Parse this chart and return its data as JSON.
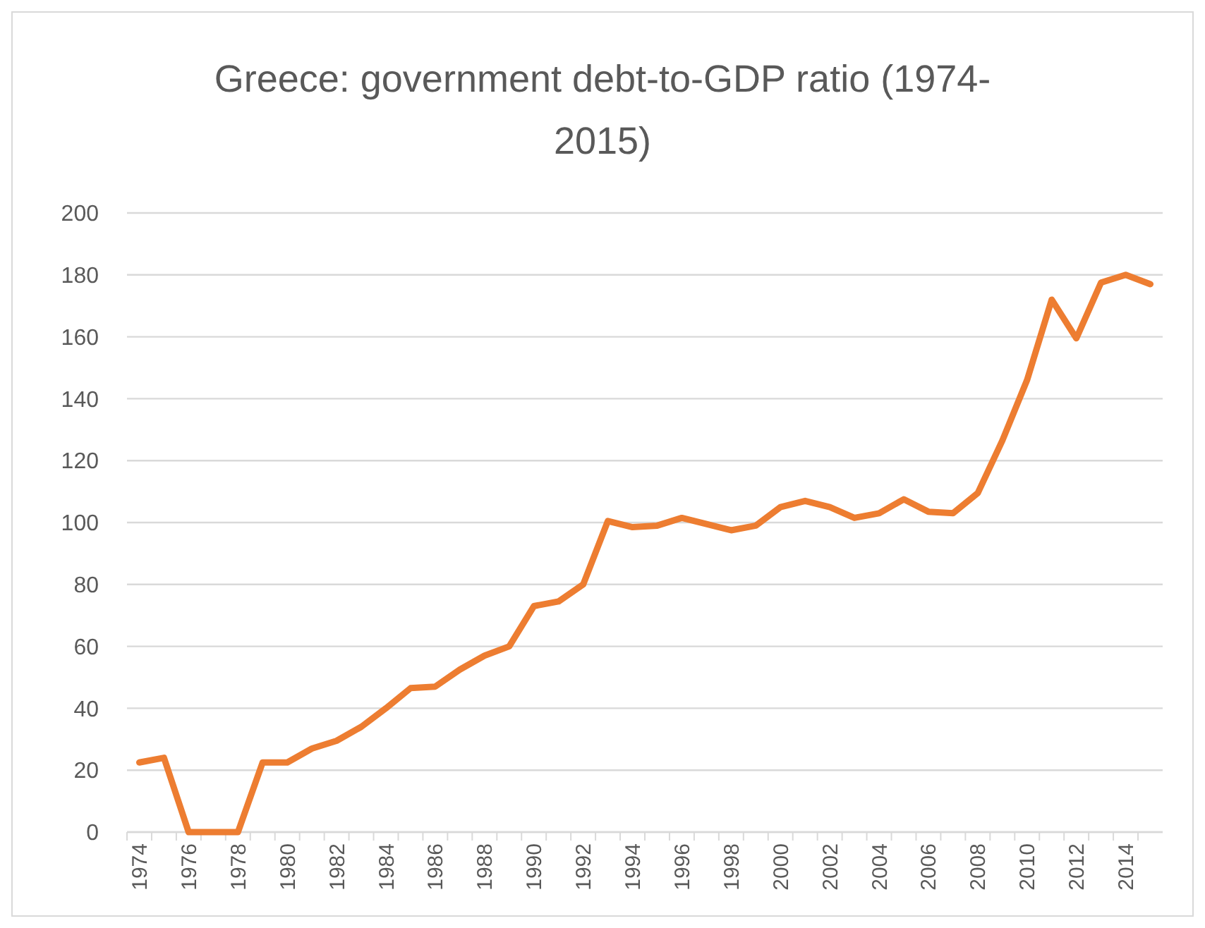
{
  "chart_data": {
    "type": "line",
    "title": "Greece: government debt-to-GDP ratio (1974-2015)",
    "categories": [
      "1974",
      null,
      "1976",
      null,
      "1978",
      null,
      "1980",
      null,
      "1982",
      null,
      "1984",
      null,
      "1986",
      null,
      "1988",
      null,
      "1990",
      null,
      "1992",
      null,
      "1994",
      null,
      "1996",
      null,
      "1998",
      null,
      "2000",
      null,
      "2002",
      null,
      "2004",
      null,
      "2006",
      null,
      "2008",
      null,
      "2010",
      null,
      "2012",
      null,
      "2014",
      null
    ],
    "series": [
      {
        "color": "#ed7d31",
        "values": [
          22.5,
          24,
          0,
          0,
          0,
          22.5,
          22.5,
          27,
          29.5,
          34,
          40,
          46.5,
          47,
          52.5,
          57,
          60,
          73,
          74.5,
          80,
          100.5,
          98.5,
          99,
          101.5,
          99.5,
          97.5,
          99,
          105,
          107,
          105,
          101.5,
          103,
          107.5,
          103.5,
          103,
          109.5,
          126.5,
          146,
          172,
          159.5,
          177.5,
          180,
          177
        ]
      }
    ],
    "ylim": [
      0,
      200
    ],
    "yticks": [
      0,
      20,
      40,
      60,
      80,
      100,
      120,
      140,
      160,
      180,
      200
    ],
    "grid": "y",
    "line_style": "solid"
  }
}
